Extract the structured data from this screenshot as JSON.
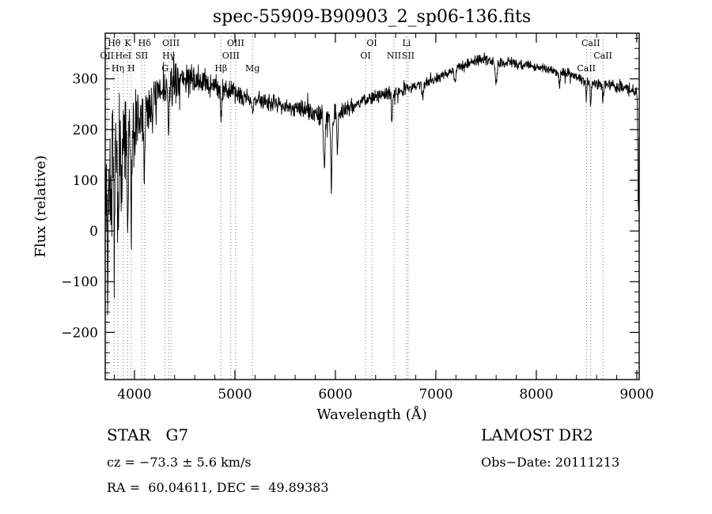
{
  "chart_data": {
    "type": "line",
    "title": "spec-55909-B90903_2_sp06-136.fits",
    "xlabel": "Wavelength (Å)",
    "ylabel": "Flux (relative)",
    "xlim": [
      3709,
      9024
    ],
    "ylim": [
      -293,
      390
    ],
    "x_ticks": [
      4000,
      5000,
      6000,
      7000,
      8000,
      9000
    ],
    "y_ticks": [
      -200,
      -100,
      0,
      100,
      200,
      300
    ],
    "x_minor_step": 200,
    "y_minor_step": 20,
    "grid": false,
    "legend": "none",
    "sample_step": 3,
    "seed": 7,
    "continuum": [
      [
        3709,
        80
      ],
      [
        3740,
        110
      ],
      [
        3780,
        140
      ],
      [
        3820,
        155
      ],
      [
        3860,
        165
      ],
      [
        3900,
        175
      ],
      [
        3950,
        185
      ],
      [
        4000,
        200
      ],
      [
        4080,
        225
      ],
      [
        4160,
        250
      ],
      [
        4250,
        270
      ],
      [
        4350,
        285
      ],
      [
        4450,
        300
      ],
      [
        4550,
        300
      ],
      [
        4650,
        295
      ],
      [
        4750,
        290
      ],
      [
        4850,
        285
      ],
      [
        4950,
        275
      ],
      [
        5050,
        268
      ],
      [
        5150,
        262
      ],
      [
        5250,
        258
      ],
      [
        5350,
        254
      ],
      [
        5450,
        250
      ],
      [
        5550,
        245
      ],
      [
        5650,
        240
      ],
      [
        5750,
        235
      ],
      [
        5850,
        228
      ],
      [
        5950,
        226
      ],
      [
        6050,
        235
      ],
      [
        6150,
        245
      ],
      [
        6250,
        255
      ],
      [
        6350,
        262
      ],
      [
        6450,
        267
      ],
      [
        6550,
        272
      ],
      [
        6650,
        277
      ],
      [
        6750,
        283
      ],
      [
        6850,
        290
      ],
      [
        6950,
        297
      ],
      [
        7050,
        305
      ],
      [
        7150,
        315
      ],
      [
        7250,
        325
      ],
      [
        7350,
        333
      ],
      [
        7450,
        340
      ],
      [
        7550,
        336
      ],
      [
        7650,
        334
      ],
      [
        7750,
        332
      ],
      [
        7850,
        328
      ],
      [
        7950,
        326
      ],
      [
        8050,
        322
      ],
      [
        8150,
        318
      ],
      [
        8250,
        314
      ],
      [
        8350,
        308
      ],
      [
        8450,
        300
      ],
      [
        8550,
        292
      ],
      [
        8650,
        290
      ],
      [
        8750,
        288
      ],
      [
        8850,
        282
      ],
      [
        8950,
        276
      ],
      [
        9024,
        272
      ]
    ],
    "noise_amp": [
      [
        3709,
        190
      ],
      [
        3750,
        170
      ],
      [
        3800,
        150
      ],
      [
        3850,
        130
      ],
      [
        3900,
        115
      ],
      [
        3950,
        100
      ],
      [
        4000,
        90
      ],
      [
        4100,
        75
      ],
      [
        4200,
        60
      ],
      [
        4300,
        52
      ],
      [
        4400,
        45
      ],
      [
        4500,
        40
      ],
      [
        4650,
        35
      ],
      [
        4800,
        30
      ],
      [
        5000,
        26
      ],
      [
        5200,
        22
      ],
      [
        5400,
        20
      ],
      [
        5600,
        22
      ],
      [
        5800,
        26
      ],
      [
        6000,
        24
      ],
      [
        6200,
        18
      ],
      [
        6400,
        16
      ],
      [
        6600,
        15
      ],
      [
        6800,
        14
      ],
      [
        7000,
        13
      ],
      [
        7300,
        12
      ],
      [
        7600,
        14
      ],
      [
        8000,
        12
      ],
      [
        8400,
        13
      ],
      [
        8700,
        14
      ],
      [
        9024,
        15
      ]
    ],
    "absorption_lines": [
      {
        "wl": 3735,
        "depth": 180,
        "width": 6
      },
      {
        "wl": 3770,
        "depth": 150,
        "width": 5
      },
      {
        "wl": 3798,
        "depth": 160,
        "width": 5
      },
      {
        "wl": 3835,
        "depth": 170,
        "width": 5
      },
      {
        "wl": 3870,
        "depth": 120,
        "width": 5
      },
      {
        "wl": 3933,
        "depth": 180,
        "width": 6
      },
      {
        "wl": 3968,
        "depth": 160,
        "width": 5
      },
      {
        "wl": 4101,
        "depth": 120,
        "width": 6
      },
      {
        "wl": 4340,
        "depth": 90,
        "width": 6
      },
      {
        "wl": 4861,
        "depth": 60,
        "width": 6
      },
      {
        "wl": 5175,
        "depth": 30,
        "width": 8
      },
      {
        "wl": 5890,
        "depth": 100,
        "width": 8
      },
      {
        "wl": 5960,
        "depth": 140,
        "width": 6
      },
      {
        "wl": 6020,
        "depth": 80,
        "width": 5
      },
      {
        "wl": 6563,
        "depth": 60,
        "width": 5
      },
      {
        "wl": 6870,
        "depth": 30,
        "width": 8
      },
      {
        "wl": 7190,
        "depth": 25,
        "width": 8
      },
      {
        "wl": 7600,
        "depth": 45,
        "width": 10
      },
      {
        "wl": 8230,
        "depth": 25,
        "width": 8
      },
      {
        "wl": 8498,
        "depth": 35,
        "width": 5
      },
      {
        "wl": 8542,
        "depth": 45,
        "width": 5
      },
      {
        "wl": 8662,
        "depth": 40,
        "width": 5
      },
      {
        "wl": 9015,
        "depth": 230,
        "width": 5
      }
    ],
    "spectral_lines": [
      {
        "label": "Hθ",
        "wl": 3798,
        "row": 0
      },
      {
        "label": "K",
        "wl": 3933,
        "row": 0
      },
      {
        "label": "Hδ",
        "wl": 4101,
        "row": 0
      },
      {
        "label": "OIII",
        "wl": 4363,
        "row": 0
      },
      {
        "label": "OIII",
        "wl": 5007,
        "row": 0
      },
      {
        "label": "OI",
        "wl": 6363,
        "row": 0
      },
      {
        "label": "Li",
        "wl": 6708,
        "row": 0
      },
      {
        "label": "CaII",
        "wl": 8542,
        "row": 0
      },
      {
        "label": "OII",
        "wl": 3727,
        "row": 1
      },
      {
        "label": "HeI",
        "wl": 3889,
        "row": 1
      },
      {
        "label": "SII",
        "wl": 4072,
        "row": 1
      },
      {
        "label": "Hγ",
        "wl": 4340,
        "row": 1
      },
      {
        "label": "OIII",
        "wl": 4959,
        "row": 1
      },
      {
        "label": "OI",
        "wl": 6300,
        "row": 1
      },
      {
        "label": "NII",
        "wl": 6583,
        "row": 1
      },
      {
        "label": "SII",
        "wl": 6724,
        "row": 1
      },
      {
        "label": "CaII",
        "wl": 8662,
        "row": 1
      },
      {
        "label": "Hη",
        "wl": 3835,
        "row": 2
      },
      {
        "label": "H",
        "wl": 3968,
        "row": 2
      },
      {
        "label": "G",
        "wl": 4305,
        "row": 2
      },
      {
        "label": "Hβ",
        "wl": 4861,
        "row": 2
      },
      {
        "label": "Mg",
        "wl": 5175,
        "row": 2
      },
      {
        "label": "CaII",
        "wl": 8498,
        "row": 2
      }
    ]
  },
  "annotations": {
    "class_label": "STAR   G7",
    "survey": "LAMOST DR2",
    "cz": "cz = −73.3 ± 5.6 km/s",
    "obs_date": "Obs−Date: 20111213",
    "coords": "RA =  60.04611, DEC =  49.89383"
  },
  "colors": {
    "trace": "#000000",
    "background": "#ffffff",
    "dotted_line": "#777777"
  }
}
